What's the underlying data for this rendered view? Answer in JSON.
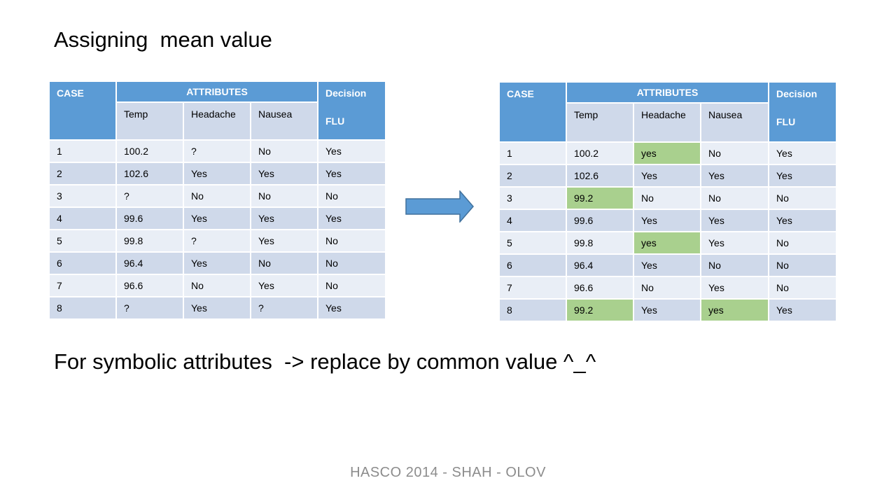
{
  "title": "Assigning  mean value",
  "subtitle": "For symbolic attributes  -> replace by common value ^_^",
  "footer": "HASCO 2014 - SHAH - OLOV",
  "colors": {
    "header": "#5b9bd5",
    "band_dark": "#cfd9ea",
    "band_light": "#e9eef6",
    "highlight": "#a9d08e",
    "arrow": "#5b9bd5"
  },
  "header": {
    "case": "CASE",
    "attributes": "ATTRIBUTES",
    "decision": "Decision",
    "flu": "FLU",
    "temp": "Temp",
    "headache": "Headache",
    "nausea": "Nausea"
  },
  "left_table": {
    "rows": [
      [
        "1",
        "100.2",
        "?",
        "No",
        "Yes"
      ],
      [
        "2",
        "102.6",
        "Yes",
        "Yes",
        "Yes"
      ],
      [
        "3",
        "?",
        "No",
        "No",
        "No"
      ],
      [
        "4",
        "99.6",
        "Yes",
        "Yes",
        "Yes"
      ],
      [
        "5",
        "99.8",
        "?",
        "Yes",
        "No"
      ],
      [
        "6",
        "96.4",
        "Yes",
        "No",
        "No"
      ],
      [
        "7",
        "96.6",
        "No",
        "Yes",
        "No"
      ],
      [
        "8",
        "?",
        "Yes",
        "?",
        "Yes"
      ]
    ]
  },
  "right_table": {
    "rows": [
      [
        "1",
        "100.2",
        "yes",
        "No",
        "Yes"
      ],
      [
        "2",
        "102.6",
        "Yes",
        "Yes",
        "Yes"
      ],
      [
        "3",
        "99.2",
        "No",
        "No",
        "No"
      ],
      [
        "4",
        "99.6",
        "Yes",
        "Yes",
        "Yes"
      ],
      [
        "5",
        "99.8",
        "yes",
        "Yes",
        "No"
      ],
      [
        "6",
        "96.4",
        "Yes",
        "No",
        "No"
      ],
      [
        "7",
        "96.6",
        "No",
        "Yes",
        "No"
      ],
      [
        "8",
        "99.2",
        "Yes",
        "yes",
        "Yes"
      ]
    ],
    "highlighted": [
      [
        0,
        2
      ],
      [
        2,
        1
      ],
      [
        4,
        2
      ],
      [
        7,
        1
      ],
      [
        7,
        3
      ]
    ]
  }
}
